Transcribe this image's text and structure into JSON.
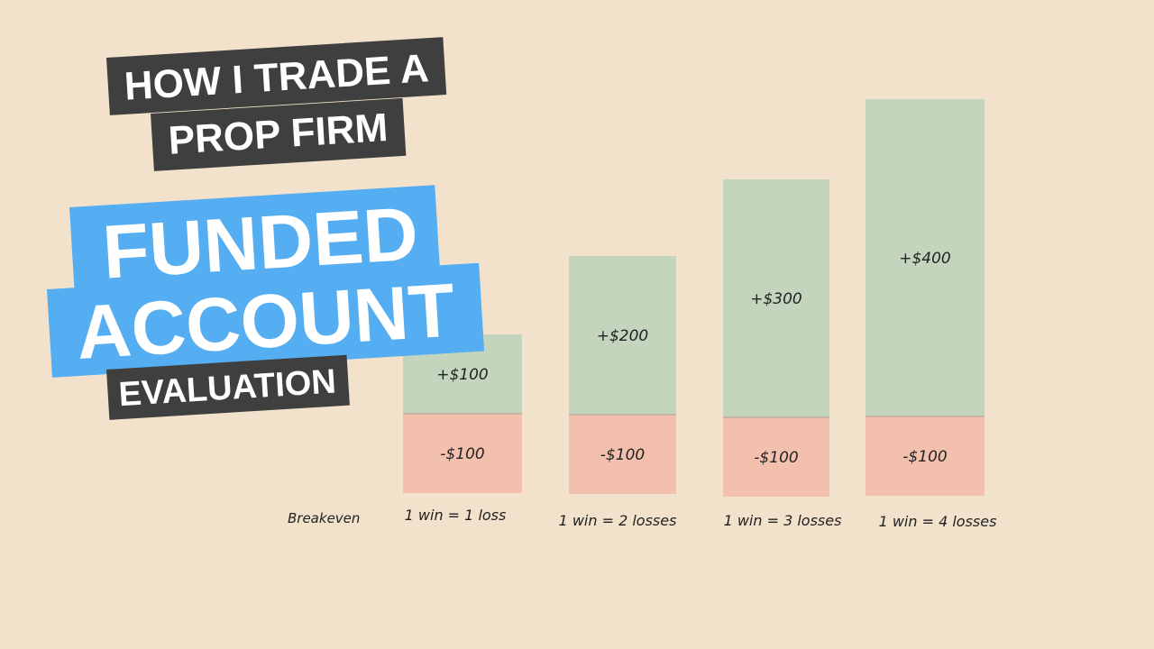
{
  "headline": {
    "line1": "HOW I TRADE A",
    "line2": "PROP FIRM",
    "highlight1": "FUNDED",
    "highlight2": "ACCOUNT",
    "line3": "EVALUATION"
  },
  "colors": {
    "background": "#f2e2cc",
    "win": "#c4d5bd",
    "loss": "#f2c0ac",
    "tag_dark": "#3f3f3f",
    "tag_blue": "#55adf2"
  },
  "chart_data": {
    "type": "bar",
    "stacked": true,
    "row_label": "Breakeven",
    "categories": [
      "1 win = 1 loss",
      "1 win = 2 losses",
      "1 win = 3 losses",
      "1 win = 4 losses"
    ],
    "series": [
      {
        "key": "win",
        "values": [
          100,
          200,
          300,
          400
        ],
        "labels": [
          "+$100",
          "+$200",
          "+$300",
          "+$400"
        ]
      },
      {
        "key": "loss",
        "values": [
          -100,
          -100,
          -100,
          -100
        ],
        "labels": [
          "-$100",
          "-$100",
          "-$100",
          "-$100"
        ]
      }
    ],
    "ylim": [
      -100,
      400
    ],
    "grid": false,
    "legend": "none"
  }
}
